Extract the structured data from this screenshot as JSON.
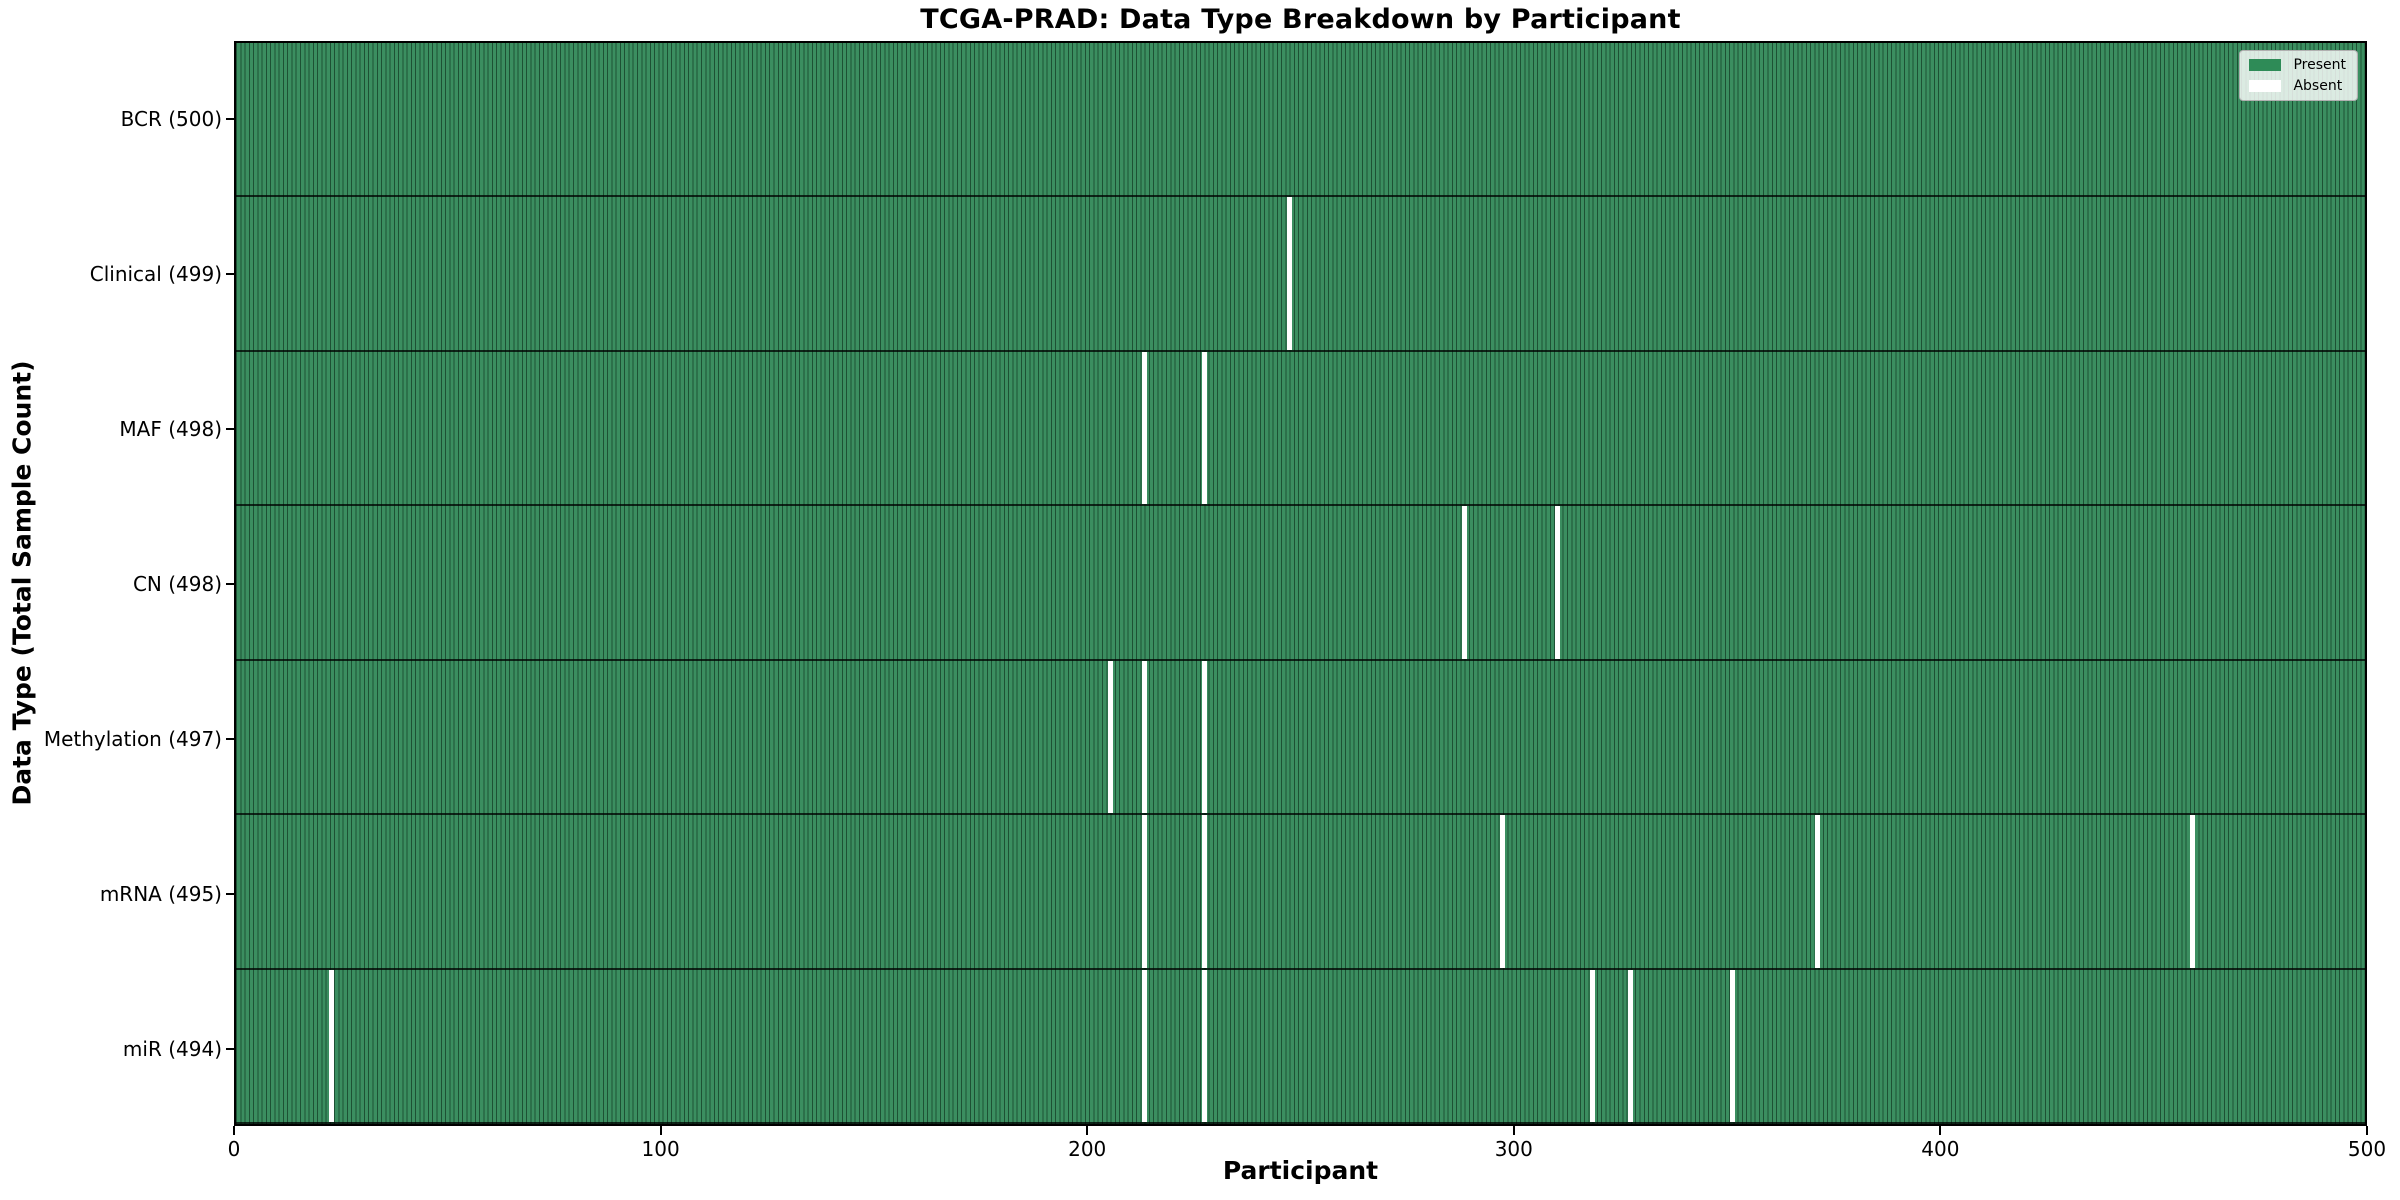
{
  "title": "TCGA-PRAD: Data Type Breakdown by Participant",
  "chart_data": {
    "type": "heatmap",
    "title": "TCGA-PRAD: Data Type Breakdown by Participant",
    "xlabel": "Participant",
    "ylabel": "Data Type (Total Sample Count)",
    "xlim": [
      0,
      500
    ],
    "x_ticks": [
      0,
      100,
      200,
      300,
      400,
      500
    ],
    "n_participants": 500,
    "grid": false,
    "legend": {
      "position": "upper right",
      "entries": [
        {
          "label": "Present",
          "color": "#2e8b57"
        },
        {
          "label": "Absent",
          "color": "#ffffff"
        }
      ]
    },
    "rows": [
      {
        "label": "BCR (500)",
        "data_type": "BCR",
        "present_count": 500,
        "absent_participants": []
      },
      {
        "label": "Clinical (499)",
        "data_type": "Clinical",
        "present_count": 499,
        "absent_participants": [
          247
        ]
      },
      {
        "label": "MAF (498)",
        "data_type": "MAF",
        "present_count": 498,
        "absent_participants": [
          213,
          227
        ]
      },
      {
        "label": "CN (498)",
        "data_type": "CN",
        "present_count": 498,
        "absent_participants": [
          288,
          310
        ]
      },
      {
        "label": "Methylation (497)",
        "data_type": "Methylation",
        "present_count": 497,
        "absent_participants": [
          205,
          213,
          227
        ]
      },
      {
        "label": "mRNA (495)",
        "data_type": "mRNA",
        "present_count": 495,
        "absent_participants": [
          213,
          227,
          297,
          371,
          459
        ]
      },
      {
        "label": "miR (494)",
        "data_type": "miR",
        "present_count": 494,
        "absent_participants": [
          22,
          213,
          227,
          318,
          327,
          351
        ]
      }
    ],
    "colors": {
      "present_fill": "#3b8e60",
      "present_legend": "#2e8b57",
      "cell_edge": "rgba(8, 40, 24, 0.60)",
      "row_separator": "rgba(0, 0, 0, 0.75)",
      "axis": "#000000",
      "background": "#ffffff"
    }
  }
}
